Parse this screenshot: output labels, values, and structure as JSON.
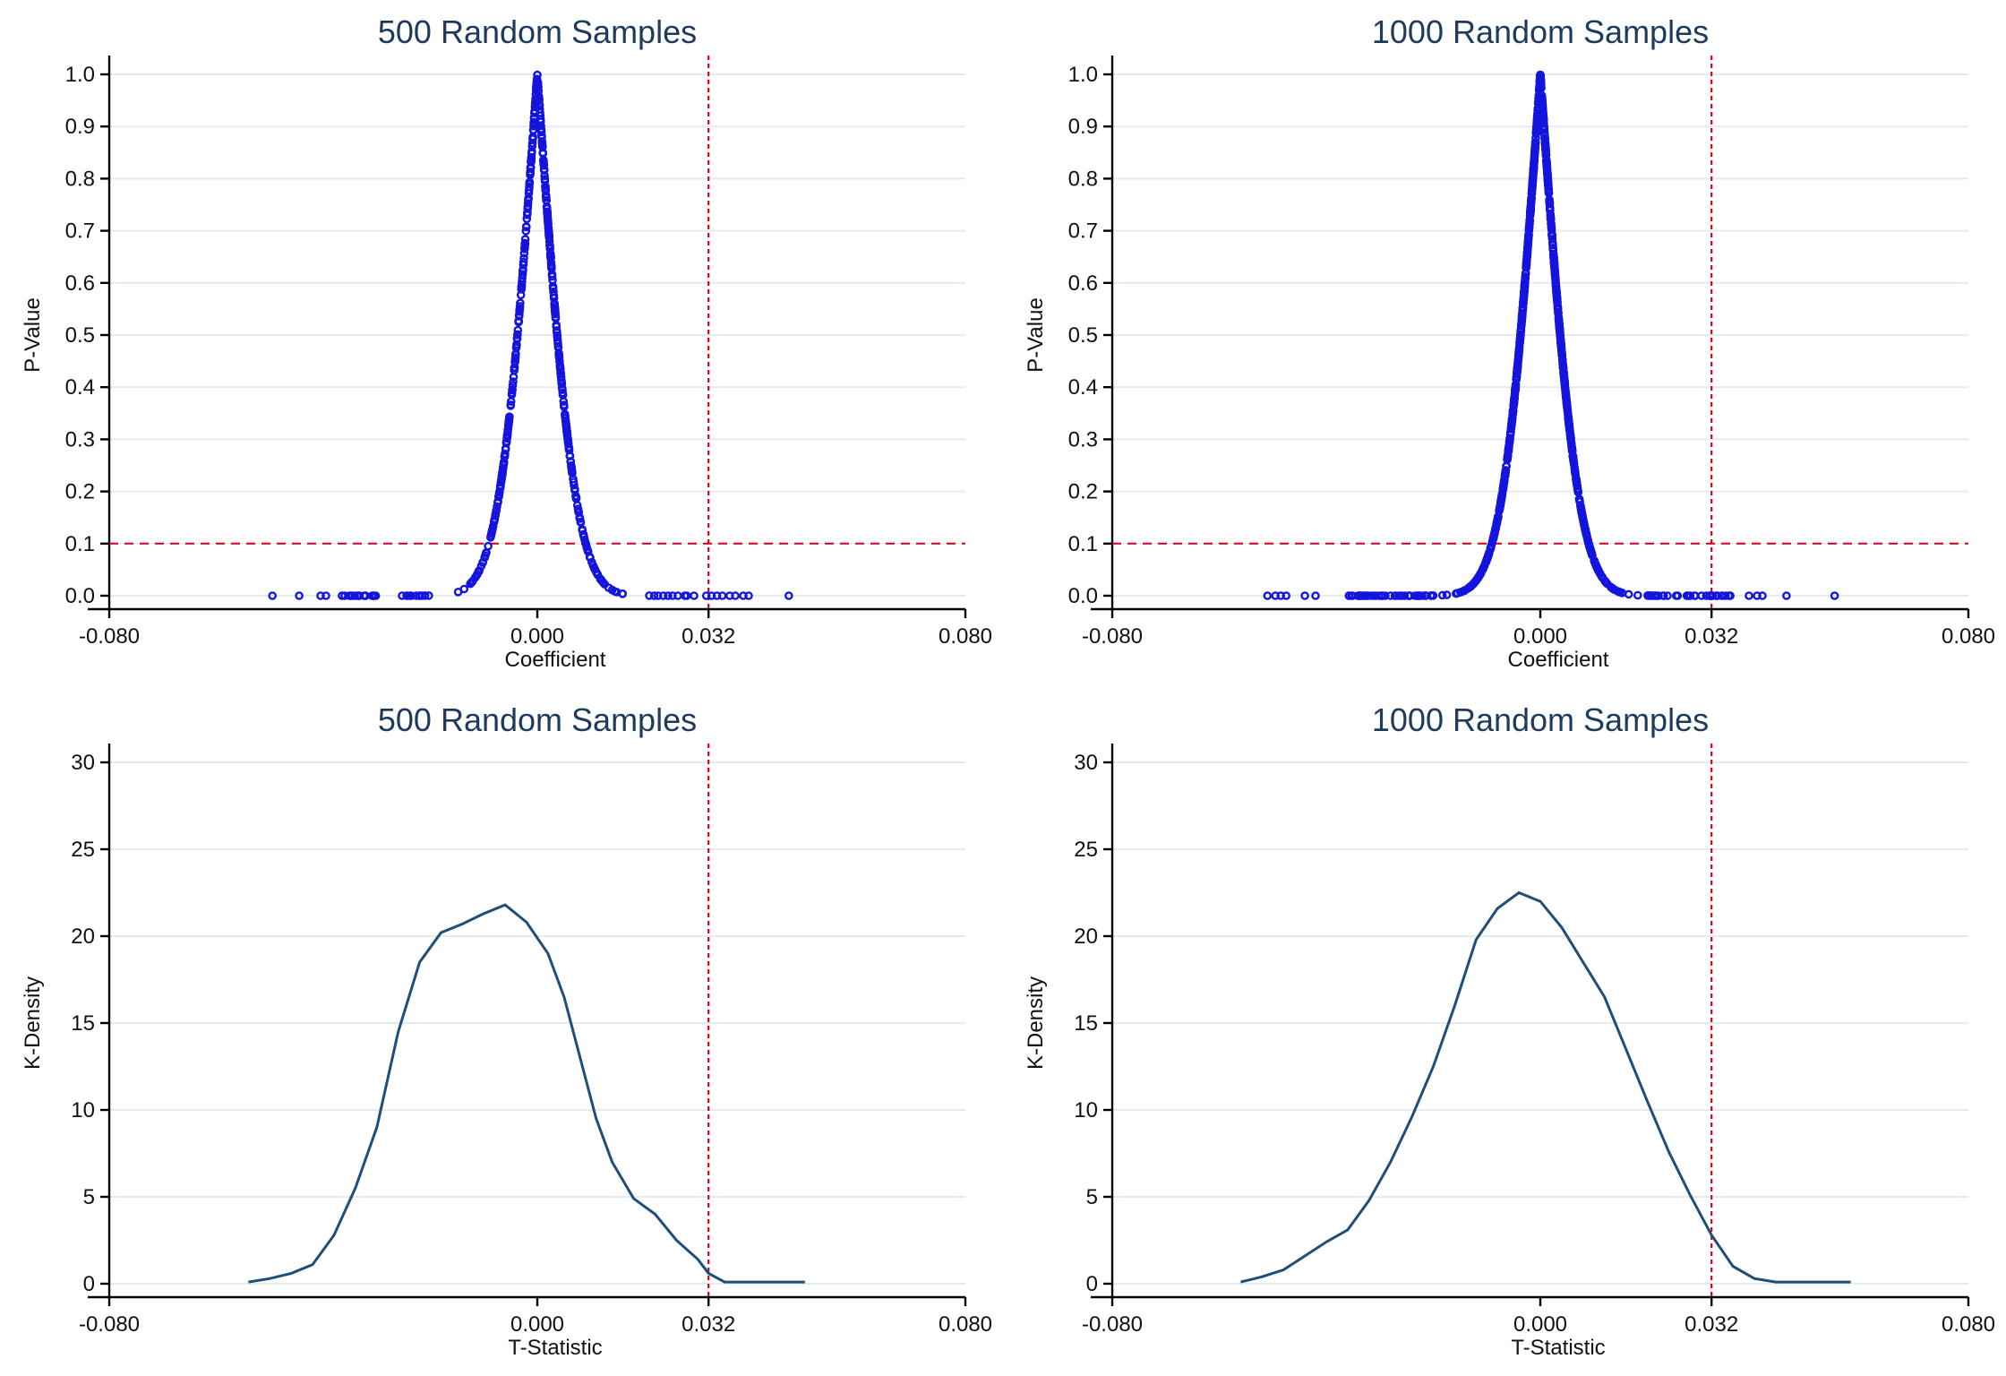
{
  "colors": {
    "title": "#1f3b5c",
    "marker": "#1414dc",
    "density": "#1f4e79",
    "reference": "#d0021b",
    "grid": "#e3ecee"
  },
  "chart_data": [
    {
      "type": "scatter",
      "title": "500 Random Samples",
      "xlabel": "Coefficient",
      "ylabel": "P-Value",
      "xlim": [
        -0.08,
        0.08
      ],
      "ylim": [
        0,
        1
      ],
      "xticks": [
        -0.08,
        0.0,
        0.032,
        0.08
      ],
      "xtick_labels": [
        "-0.080",
        "0.000",
        "0.032",
        "0.080"
      ],
      "yticks": [
        0,
        0.1,
        0.2,
        0.3,
        0.4,
        0.5,
        0.6,
        0.7,
        0.8,
        0.9,
        1.0
      ],
      "ytick_labels": [
        "0.0",
        "0.1",
        "0.2",
        "0.3",
        "0.4",
        "0.5",
        "0.6",
        "0.7",
        "0.8",
        "0.9",
        "1.0"
      ],
      "grid": true,
      "hline": 0.1,
      "vline": 0.032,
      "n_points": 500,
      "x_scale": 0.0055,
      "x_extremes": [
        -0.0495,
        -0.0445,
        -0.0405,
        -0.0395,
        -0.0365,
        -0.036,
        0.037,
        0.0385,
        0.0395,
        0.047
      ]
    },
    {
      "type": "scatter",
      "title": "1000 Random Samples",
      "xlabel": "Coefficient",
      "ylabel": "P-Value",
      "xlim": [
        -0.08,
        0.08
      ],
      "ylim": [
        0,
        1
      ],
      "xticks": [
        -0.08,
        0.0,
        0.032,
        0.08
      ],
      "xtick_labels": [
        "-0.080",
        "0.000",
        "0.032",
        "0.080"
      ],
      "yticks": [
        0,
        0.1,
        0.2,
        0.3,
        0.4,
        0.5,
        0.6,
        0.7,
        0.8,
        0.9,
        1.0
      ],
      "ytick_labels": [
        "0.0",
        "0.1",
        "0.2",
        "0.3",
        "0.4",
        "0.5",
        "0.6",
        "0.7",
        "0.8",
        "0.9",
        "1.0"
      ],
      "grid": true,
      "hline": 0.1,
      "vline": 0.032,
      "n_points": 1000,
      "x_scale": 0.0055,
      "x_extremes": [
        -0.051,
        -0.0495,
        -0.0485,
        -0.0475,
        -0.044,
        -0.042,
        0.039,
        0.0405,
        0.0415,
        0.046,
        0.055
      ]
    },
    {
      "type": "line",
      "title": "500 Random Samples",
      "xlabel": "T-Statistic",
      "ylabel": "K-Density",
      "xlim": [
        -0.08,
        0.08
      ],
      "ylim": [
        0,
        30
      ],
      "xticks": [
        -0.08,
        0.0,
        0.032,
        0.08
      ],
      "xtick_labels": [
        "-0.080",
        "0.000",
        "0.032",
        "0.080"
      ],
      "yticks": [
        0,
        5,
        10,
        15,
        20,
        25,
        30
      ],
      "ytick_labels": [
        "0",
        "5",
        "10",
        "15",
        "20",
        "25",
        "30"
      ],
      "grid": true,
      "vline": 0.032,
      "series": [
        {
          "name": "K-Density",
          "x": [
            -0.054,
            -0.05,
            -0.046,
            -0.042,
            -0.038,
            -0.034,
            -0.03,
            -0.026,
            -0.022,
            -0.018,
            -0.014,
            -0.01,
            -0.006,
            -0.002,
            0.002,
            0.005,
            0.008,
            0.011,
            0.014,
            0.018,
            0.022,
            0.026,
            0.03,
            0.032,
            0.035,
            0.038,
            0.042,
            0.046,
            0.05
          ],
          "y": [
            0.1,
            0.3,
            0.6,
            1.1,
            2.8,
            5.5,
            9.0,
            14.5,
            18.5,
            20.2,
            20.7,
            21.3,
            21.8,
            20.8,
            19.0,
            16.5,
            13.0,
            9.5,
            7.0,
            4.9,
            4.0,
            2.5,
            1.4,
            0.6,
            0.1,
            0.1,
            0.1,
            0.1,
            0.1
          ]
        }
      ]
    },
    {
      "type": "line",
      "title": "1000 Random Samples",
      "xlabel": "T-Statistic",
      "ylabel": "K-Density",
      "xlim": [
        -0.08,
        0.08
      ],
      "ylim": [
        0,
        30
      ],
      "xticks": [
        -0.08,
        0.0,
        0.032,
        0.08
      ],
      "xtick_labels": [
        "-0.080",
        "0.000",
        "0.032",
        "0.080"
      ],
      "yticks": [
        0,
        5,
        10,
        15,
        20,
        25,
        30
      ],
      "ytick_labels": [
        "0",
        "5",
        "10",
        "15",
        "20",
        "25",
        "30"
      ],
      "grid": true,
      "vline": 0.032,
      "series": [
        {
          "name": "K-Density",
          "x": [
            -0.056,
            -0.052,
            -0.048,
            -0.044,
            -0.04,
            -0.036,
            -0.032,
            -0.028,
            -0.024,
            -0.02,
            -0.016,
            -0.012,
            -0.008,
            -0.004,
            0.0,
            0.004,
            0.008,
            0.012,
            0.016,
            0.02,
            0.024,
            0.028,
            0.032,
            0.036,
            0.04,
            0.044,
            0.048,
            0.052,
            0.058
          ],
          "y": [
            0.1,
            0.4,
            0.8,
            1.6,
            2.4,
            3.1,
            4.8,
            7.0,
            9.6,
            12.5,
            16.0,
            19.8,
            21.6,
            22.5,
            22.0,
            20.5,
            18.5,
            16.5,
            13.5,
            10.5,
            7.6,
            5.1,
            2.8,
            1.0,
            0.3,
            0.1,
            0.1,
            0.1,
            0.1
          ]
        }
      ]
    }
  ]
}
